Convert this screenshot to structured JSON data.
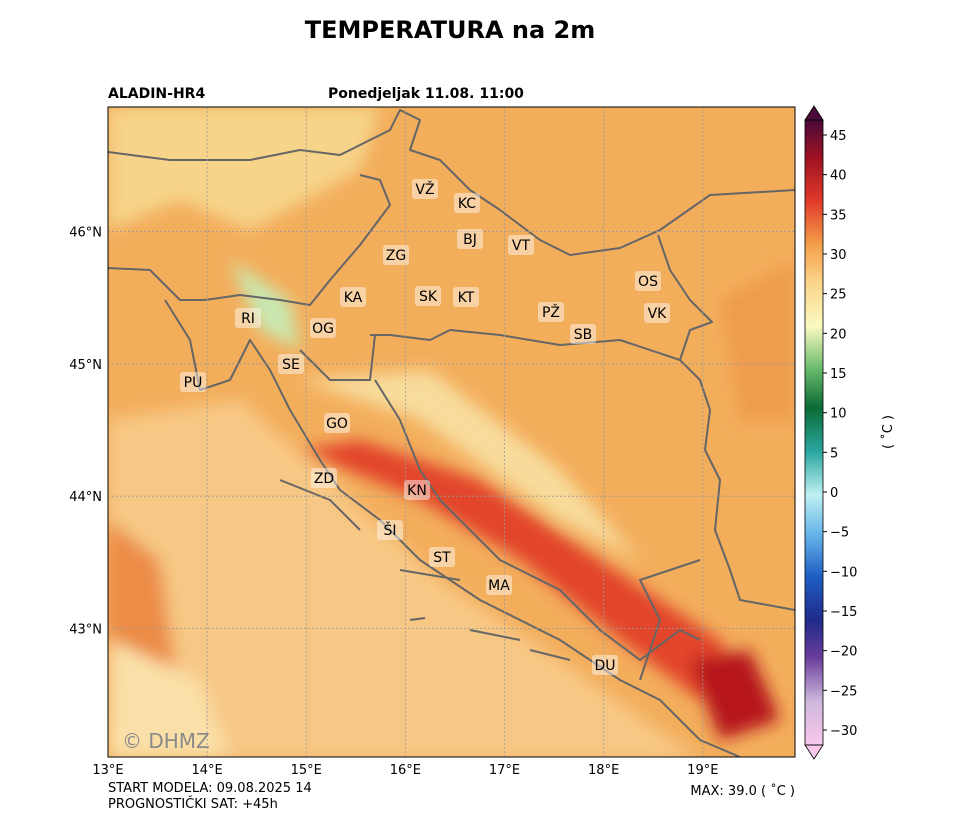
{
  "title": "TEMPERATURA na 2m",
  "model": "ALADIN-HR4",
  "valid_time": "Ponedjeljak 11.08. 11:00",
  "map": {
    "xlim": [
      13,
      19.93
    ],
    "ylim": [
      42.03,
      46.94
    ],
    "xticks": [
      {
        "value": 13,
        "label": "13°E"
      },
      {
        "value": 14,
        "label": "14°E"
      },
      {
        "value": 15,
        "label": "15°E"
      },
      {
        "value": 16,
        "label": "16°E"
      },
      {
        "value": 17,
        "label": "17°E"
      },
      {
        "value": 18,
        "label": "18°E"
      },
      {
        "value": 19,
        "label": "19°E"
      }
    ],
    "yticks": [
      {
        "value": 43,
        "label": "43°N"
      },
      {
        "value": 44,
        "label": "44°N"
      },
      {
        "value": 45,
        "label": "45°N"
      },
      {
        "value": 46,
        "label": "46°N"
      }
    ],
    "cities": [
      "VŽ",
      "KC",
      "BJ",
      "VT",
      "ZG",
      "KA",
      "SK",
      "KT",
      "OS",
      "PŽ",
      "VK",
      "SB",
      "RI",
      "OG",
      "SE",
      "PU",
      "GO",
      "ZD",
      "KN",
      "ŠI",
      "ST",
      "MA",
      "DU"
    ],
    "watermark": "© DHMZ"
  },
  "colorbar": {
    "label": "( ˚C )",
    "lim": [
      -30,
      45
    ],
    "ticks": [
      45,
      40,
      35,
      30,
      25,
      20,
      15,
      10,
      5,
      0,
      {
        "value": -5,
        "label": "−5"
      },
      {
        "value": -10,
        "label": "−10"
      },
      {
        "value": -15,
        "label": "−15"
      },
      {
        "value": -20,
        "label": "−20"
      },
      {
        "value": -25,
        "label": "−25"
      },
      {
        "value": -30,
        "label": "−30"
      }
    ]
  },
  "footer": {
    "start": "START MODELA: 09.08.2025 14",
    "hour": "PROGNOSTIČKI SAT: +45h",
    "max": "MAX: 39.0 ( ˚C )"
  }
}
